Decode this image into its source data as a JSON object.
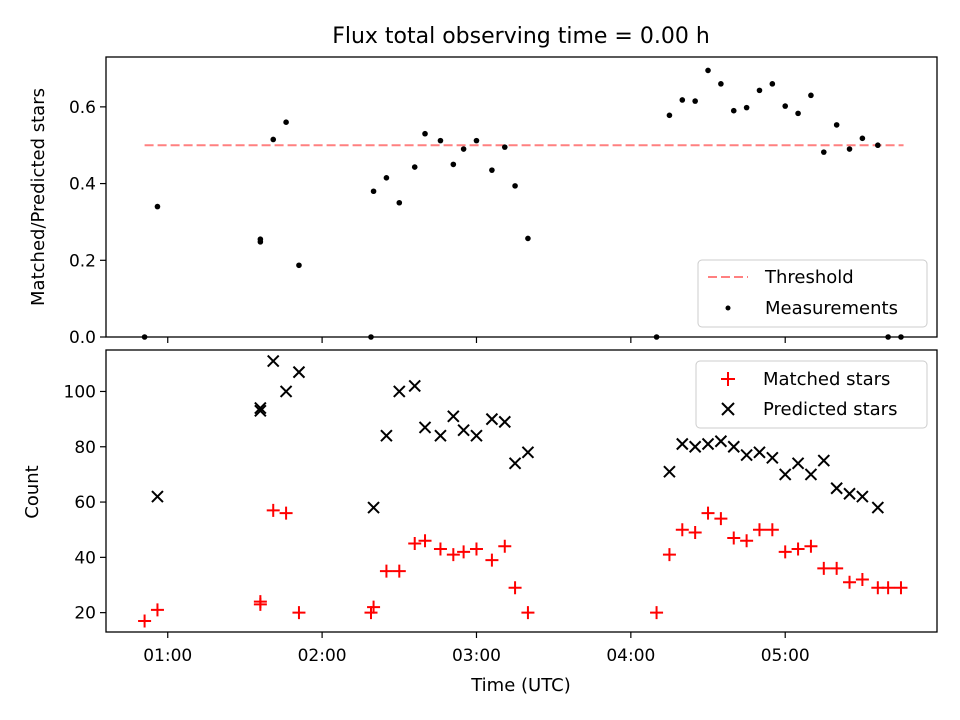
{
  "chart_data": [
    {
      "type": "scatter",
      "title": "Flux total observing time = 0.00 h",
      "ylabel": "Matched/Predicted stars",
      "xlabel": "",
      "xlim": [
        "00:36",
        "05:59"
      ],
      "ylim": [
        0,
        0.73
      ],
      "y_ticks": [
        0.0,
        0.2,
        0.4,
        0.6
      ],
      "y_tick_labels": [
        "0.0",
        "0.2",
        "0.4",
        "0.6"
      ],
      "legend_position": "lower right",
      "threshold": {
        "name": "Threshold",
        "value": 0.5,
        "x_range": [
          "00:51",
          "05:46"
        ],
        "color": "#ff8080",
        "style": "dashed"
      },
      "series": [
        {
          "name": "Measurements",
          "color": "#000000",
          "marker": "dot",
          "points": [
            [
              "00:51",
              0.0
            ],
            [
              "00:56",
              0.34
            ],
            [
              "01:36",
              0.255
            ],
            [
              "01:36",
              0.248
            ],
            [
              "01:41",
              0.515
            ],
            [
              "01:46",
              0.56
            ],
            [
              "01:51",
              0.187
            ],
            [
              "02:19",
              0.0
            ],
            [
              "02:20",
              0.38
            ],
            [
              "02:25",
              0.415
            ],
            [
              "02:30",
              0.35
            ],
            [
              "02:36",
              0.443
            ],
            [
              "02:40",
              0.53
            ],
            [
              "02:46",
              0.512
            ],
            [
              "02:51",
              0.45
            ],
            [
              "02:55",
              0.49
            ],
            [
              "03:00",
              0.512
            ],
            [
              "03:06",
              0.435
            ],
            [
              "03:11",
              0.495
            ],
            [
              "03:15",
              0.394
            ],
            [
              "03:20",
              0.257
            ],
            [
              "04:10",
              0.0
            ],
            [
              "04:15",
              0.578
            ],
            [
              "04:20",
              0.618
            ],
            [
              "04:25",
              0.615
            ],
            [
              "04:30",
              0.695
            ],
            [
              "04:35",
              0.66
            ],
            [
              "04:40",
              0.59
            ],
            [
              "04:45",
              0.598
            ],
            [
              "04:50",
              0.643
            ],
            [
              "04:55",
              0.66
            ],
            [
              "05:00",
              0.602
            ],
            [
              "05:05",
              0.583
            ],
            [
              "05:10",
              0.63
            ],
            [
              "05:15",
              0.482
            ],
            [
              "05:20",
              0.553
            ],
            [
              "05:25",
              0.49
            ],
            [
              "05:30",
              0.518
            ],
            [
              "05:36",
              0.5
            ],
            [
              "05:40",
              0.0
            ],
            [
              "05:45",
              0.0
            ]
          ]
        }
      ]
    },
    {
      "type": "scatter",
      "title": "",
      "ylabel": "Count",
      "xlabel": "Time (UTC)",
      "xlim": [
        "00:36",
        "05:59"
      ],
      "ylim": [
        13,
        115
      ],
      "y_ticks": [
        20,
        40,
        60,
        80,
        100
      ],
      "y_tick_labels": [
        "20",
        "40",
        "60",
        "80",
        "100"
      ],
      "x_ticks": [
        "01:00",
        "02:00",
        "03:00",
        "04:00",
        "05:00"
      ],
      "x_tick_labels": [
        "01:00",
        "02:00",
        "03:00",
        "04:00",
        "05:00"
      ],
      "legend_position": "upper right",
      "series": [
        {
          "name": "Matched stars",
          "color": "#ff0000",
          "marker": "plus",
          "points": [
            [
              "00:51",
              17
            ],
            [
              "00:56",
              21
            ],
            [
              "01:36",
              24
            ],
            [
              "01:36",
              23
            ],
            [
              "01:41",
              57
            ],
            [
              "01:46",
              56
            ],
            [
              "01:51",
              20
            ],
            [
              "02:19",
              20
            ],
            [
              "02:20",
              22
            ],
            [
              "02:25",
              35
            ],
            [
              "02:30",
              35
            ],
            [
              "02:36",
              45
            ],
            [
              "02:40",
              46
            ],
            [
              "02:46",
              43
            ],
            [
              "02:51",
              41
            ],
            [
              "02:55",
              42
            ],
            [
              "03:00",
              43
            ],
            [
              "03:06",
              39
            ],
            [
              "03:11",
              44
            ],
            [
              "03:15",
              29
            ],
            [
              "03:20",
              20
            ],
            [
              "04:10",
              20
            ],
            [
              "04:15",
              41
            ],
            [
              "04:20",
              50
            ],
            [
              "04:25",
              49
            ],
            [
              "04:30",
              56
            ],
            [
              "04:35",
              54
            ],
            [
              "04:40",
              47
            ],
            [
              "04:45",
              46
            ],
            [
              "04:50",
              50
            ],
            [
              "04:55",
              50
            ],
            [
              "05:00",
              42
            ],
            [
              "05:05",
              43
            ],
            [
              "05:10",
              44
            ],
            [
              "05:15",
              36
            ],
            [
              "05:20",
              36
            ],
            [
              "05:25",
              31
            ],
            [
              "05:30",
              32
            ],
            [
              "05:36",
              29
            ],
            [
              "05:40",
              29
            ],
            [
              "05:45",
              29
            ]
          ]
        },
        {
          "name": "Predicted stars",
          "color": "#000000",
          "marker": "x",
          "points": [
            [
              "00:56",
              62
            ],
            [
              "01:36",
              94
            ],
            [
              "01:36",
              93
            ],
            [
              "01:41",
              111
            ],
            [
              "01:46",
              100
            ],
            [
              "01:51",
              107
            ],
            [
              "02:20",
              58
            ],
            [
              "02:25",
              84
            ],
            [
              "02:30",
              100
            ],
            [
              "02:36",
              102
            ],
            [
              "02:40",
              87
            ],
            [
              "02:46",
              84
            ],
            [
              "02:51",
              91
            ],
            [
              "02:55",
              86
            ],
            [
              "03:00",
              84
            ],
            [
              "03:06",
              90
            ],
            [
              "03:11",
              89
            ],
            [
              "03:15",
              74
            ],
            [
              "03:20",
              78
            ],
            [
              "04:15",
              71
            ],
            [
              "04:20",
              81
            ],
            [
              "04:25",
              80
            ],
            [
              "04:30",
              81
            ],
            [
              "04:35",
              82
            ],
            [
              "04:40",
              80
            ],
            [
              "04:45",
              77
            ],
            [
              "04:50",
              78
            ],
            [
              "04:55",
              76
            ],
            [
              "05:00",
              70
            ],
            [
              "05:05",
              74
            ],
            [
              "05:10",
              70
            ],
            [
              "05:15",
              75
            ],
            [
              "05:20",
              65
            ],
            [
              "05:25",
              63
            ],
            [
              "05:30",
              62
            ],
            [
              "05:36",
              58
            ]
          ]
        }
      ]
    }
  ]
}
